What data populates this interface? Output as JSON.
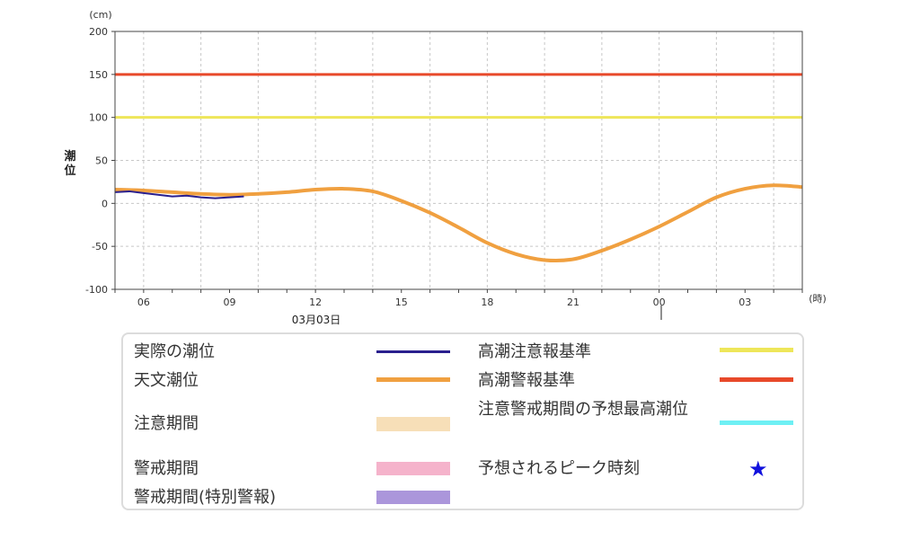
{
  "chart_data": {
    "type": "line",
    "ylabel_unit": "(cm)",
    "ylabel": "潮位",
    "xlabel_unit": "(時)",
    "date_label": "03月03日",
    "ylim": [
      -100,
      200
    ],
    "yticks": [
      200,
      150,
      100,
      50,
      0,
      -50,
      -100
    ],
    "xticks": [
      {
        "hour": 6,
        "label": "06"
      },
      {
        "hour": 9,
        "label": "09"
      },
      {
        "hour": 12,
        "label": "12"
      },
      {
        "hour": 15,
        "label": "15"
      },
      {
        "hour": 18,
        "label": "18"
      },
      {
        "hour": 21,
        "label": "21"
      },
      {
        "hour": 24,
        "label": "00"
      },
      {
        "hour": 27,
        "label": "03"
      }
    ],
    "xlim": [
      5,
      29
    ],
    "grid": true,
    "thresholds": [
      {
        "name": "高潮警報基準",
        "value": 150,
        "color": "#e8492a"
      },
      {
        "name": "高潮注意報基準",
        "value": 100,
        "color": "#eee65a"
      }
    ],
    "series": [
      {
        "name": "天文潮位",
        "color": "#f0a040",
        "x": [
          5,
          6,
          7,
          8,
          9,
          10,
          11,
          12,
          13,
          14,
          15,
          16,
          17,
          18,
          19,
          20,
          21,
          22,
          23,
          24,
          25,
          26,
          27,
          28,
          29
        ],
        "y": [
          16,
          15,
          13,
          11,
          10,
          11,
          13,
          16,
          17,
          14,
          3,
          -11,
          -28,
          -46,
          -59,
          -66,
          -65,
          -55,
          -42,
          -27,
          -10,
          7,
          17,
          21,
          19
        ]
      },
      {
        "name": "実際の潮位",
        "color": "#2a1f8e",
        "x": [
          5,
          5.5,
          6,
          6.5,
          7,
          7.5,
          8,
          8.5,
          9,
          9.5
        ],
        "y": [
          13,
          14,
          12,
          10,
          8,
          9,
          7,
          6,
          7,
          8
        ]
      }
    ]
  },
  "legend": {
    "items": [
      {
        "label": "実際の潮位",
        "type": "line",
        "color": "#2a1f8e"
      },
      {
        "label": "天文潮位",
        "type": "line",
        "color": "#f0a040"
      },
      {
        "label": "注意期間",
        "type": "band",
        "color": "#f7dfb8"
      },
      {
        "label": "警戒期間",
        "type": "band",
        "color": "#f5b3cb"
      },
      {
        "label": "警戒期間(特別警報)",
        "type": "band",
        "color": "#ab96db"
      },
      {
        "label": "高潮注意報基準",
        "type": "line",
        "color": "#eee65a"
      },
      {
        "label": "高潮警報基準",
        "type": "line",
        "color": "#e8492a"
      },
      {
        "label": "注意警戒期間の予想最高潮位",
        "type": "line",
        "color": "#6ef0f4"
      },
      {
        "label": "予想されるピーク時刻",
        "type": "star",
        "color": "#1111dd",
        "symbol": "★"
      }
    ]
  }
}
